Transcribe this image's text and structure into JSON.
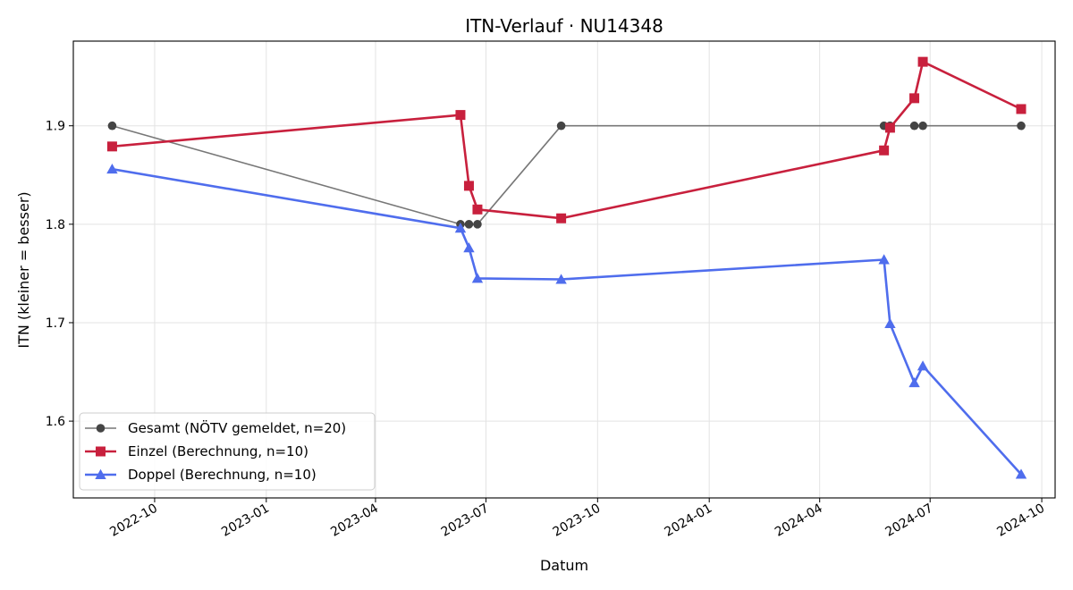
{
  "chart_data": {
    "type": "line",
    "title": "ITN-Verlauf · NU14348",
    "xlabel": "Datum",
    "ylabel": "ITN  (kleiner = besser)",
    "xlim": [
      "2022-07-26",
      "2024-10-12"
    ],
    "ylim": [
      1.522,
      1.986
    ],
    "grid": true,
    "legend_position": "lower-left",
    "x_ticks": [
      "2022-10",
      "2023-01",
      "2023-04",
      "2023-07",
      "2023-10",
      "2024-01",
      "2024-04",
      "2024-07",
      "2024-10"
    ],
    "y_ticks": [
      1.6,
      1.7,
      1.8,
      1.9
    ],
    "series": [
      {
        "name": "Gesamt (NÖTV gemeldet, n=20)",
        "color": "#777777",
        "marker_color": "#444444",
        "marker": "circle",
        "line_width": 1.6,
        "points": [
          {
            "x": "2022-08-27",
            "y": 1.9
          },
          {
            "x": "2023-06-10",
            "y": 1.8
          },
          {
            "x": "2023-06-17",
            "y": 1.8
          },
          {
            "x": "2023-06-24",
            "y": 1.8
          },
          {
            "x": "2023-09-01",
            "y": 1.9
          },
          {
            "x": "2024-05-24",
            "y": 1.9
          },
          {
            "x": "2024-05-29",
            "y": 1.9
          },
          {
            "x": "2024-06-18",
            "y": 1.9
          },
          {
            "x": "2024-06-25",
            "y": 1.9
          },
          {
            "x": "2024-09-14",
            "y": 1.9
          }
        ]
      },
      {
        "name": "Einzel (Berechnung, n=10)",
        "color": "#c8203d",
        "marker_color": "#c8203d",
        "marker": "square",
        "line_width": 2.6,
        "points": [
          {
            "x": "2022-08-27",
            "y": 1.879
          },
          {
            "x": "2023-06-10",
            "y": 1.911
          },
          {
            "x": "2023-06-17",
            "y": 1.839
          },
          {
            "x": "2023-06-24",
            "y": 1.815
          },
          {
            "x": "2023-09-01",
            "y": 1.806
          },
          {
            "x": "2024-05-24",
            "y": 1.875
          },
          {
            "x": "2024-05-29",
            "y": 1.898
          },
          {
            "x": "2024-06-18",
            "y": 1.928
          },
          {
            "x": "2024-06-25",
            "y": 1.965
          },
          {
            "x": "2024-09-14",
            "y": 1.917
          }
        ]
      },
      {
        "name": "Doppel (Berechnung, n=10)",
        "color": "#4f6ded",
        "marker_color": "#4f6ded",
        "marker": "triangle",
        "line_width": 2.6,
        "points": [
          {
            "x": "2022-08-27",
            "y": 1.856
          },
          {
            "x": "2023-06-10",
            "y": 1.796
          },
          {
            "x": "2023-06-17",
            "y": 1.776
          },
          {
            "x": "2023-06-24",
            "y": 1.745
          },
          {
            "x": "2023-09-01",
            "y": 1.744
          },
          {
            "x": "2024-05-24",
            "y": 1.764
          },
          {
            "x": "2024-05-29",
            "y": 1.699
          },
          {
            "x": "2024-06-18",
            "y": 1.639
          },
          {
            "x": "2024-06-25",
            "y": 1.656
          },
          {
            "x": "2024-09-14",
            "y": 1.546
          }
        ]
      }
    ]
  }
}
